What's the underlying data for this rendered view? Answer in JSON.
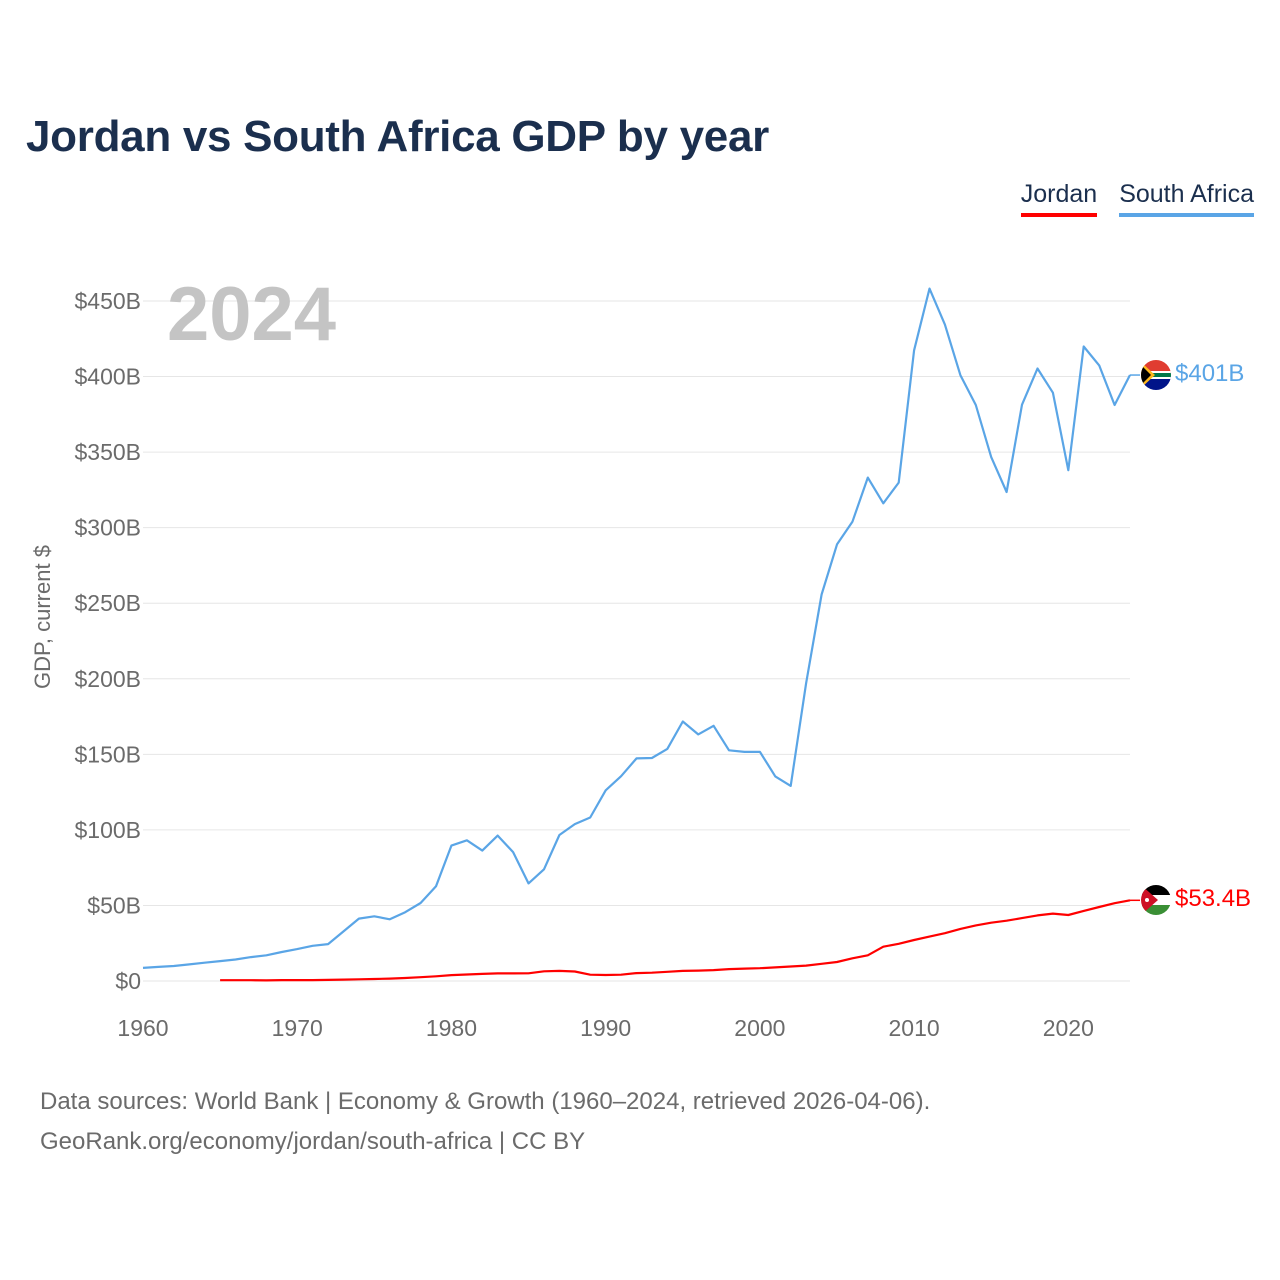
{
  "title": "Jordan vs South Africa GDP by year",
  "year_label": "2024",
  "legend": [
    {
      "label": "Jordan",
      "color": "#ff0000"
    },
    {
      "label": "South Africa",
      "color": "#5aa5e6"
    }
  ],
  "footer": {
    "line1": "Data sources: World Bank | Economy & Growth (1960–2024, retrieved 2026-04-06).",
    "line2": "GeoRank.org/economy/jordan/south-africa | CC BY"
  },
  "chart_data": {
    "type": "line",
    "title": "Jordan vs South Africa GDP by year",
    "xlabel": "",
    "ylabel": "GDP, current $",
    "xlim": [
      1960,
      2024
    ],
    "ylim": [
      0,
      450
    ],
    "y_unit": "billion USD",
    "x_ticks": [
      "1960",
      "1970",
      "1980",
      "1990",
      "2000",
      "2010",
      "2020"
    ],
    "y_ticks": [
      "$0",
      "$50B",
      "$100B",
      "$150B",
      "$200B",
      "$250B",
      "$300B",
      "$350B",
      "$400B",
      "$450B"
    ],
    "grid": true,
    "series": [
      {
        "name": "South Africa",
        "color": "#5aa5e6",
        "end_label": "$401B",
        "x": [
          1960,
          1961,
          1962,
          1963,
          1964,
          1965,
          1966,
          1967,
          1968,
          1969,
          1970,
          1971,
          1972,
          1973,
          1974,
          1975,
          1976,
          1977,
          1978,
          1979,
          1980,
          1981,
          1982,
          1983,
          1984,
          1985,
          1986,
          1987,
          1988,
          1989,
          1990,
          1991,
          1992,
          1993,
          1994,
          1995,
          1996,
          1997,
          1998,
          1999,
          2000,
          2001,
          2002,
          2003,
          2004,
          2005,
          2006,
          2007,
          2008,
          2009,
          2010,
          2011,
          2012,
          2013,
          2014,
          2015,
          2016,
          2017,
          2018,
          2019,
          2020,
          2021,
          2022,
          2023,
          2024
        ],
        "values": [
          8.7,
          9.3,
          9.9,
          11,
          12.1,
          13.2,
          14.2,
          15.8,
          17,
          19.2,
          21.1,
          23.3,
          24.4,
          32.8,
          41.3,
          42.8,
          40.8,
          45.5,
          51.6,
          62.7,
          89.6,
          93.1,
          86.3,
          96.2,
          85.3,
          64.6,
          73.9,
          96.6,
          103.8,
          108.2,
          126.2,
          135.5,
          147.3,
          147.6,
          153.6,
          171.7,
          163.2,
          168.9,
          152.7,
          151.6,
          151.7,
          135.4,
          129.1,
          197,
          255.8,
          288.9,
          303.9,
          333.1,
          316.1,
          329.8,
          417.4,
          458.2,
          434.4,
          400.9,
          381.2,
          346.7,
          323.6,
          381.4,
          405.3,
          389.3,
          338,
          419.9,
          407.4,
          381.2,
          401
        ]
      },
      {
        "name": "Jordan",
        "color": "#ff0000",
        "end_label": "$53.4B",
        "x": [
          1965,
          1966,
          1967,
          1968,
          1969,
          1970,
          1971,
          1972,
          1973,
          1974,
          1975,
          1976,
          1977,
          1978,
          1979,
          1980,
          1981,
          1982,
          1983,
          1984,
          1985,
          1986,
          1987,
          1988,
          1989,
          1990,
          1991,
          1992,
          1993,
          1994,
          1995,
          1996,
          1997,
          1998,
          1999,
          2000,
          2001,
          2002,
          2003,
          2004,
          2005,
          2006,
          2007,
          2008,
          2009,
          2010,
          2011,
          2012,
          2013,
          2014,
          2015,
          2016,
          2017,
          2018,
          2019,
          2020,
          2021,
          2022,
          2023,
          2024
        ],
        "values": [
          0.5,
          0.5,
          0.5,
          0.4,
          0.6,
          0.6,
          0.6,
          0.7,
          0.9,
          1.1,
          1.3,
          1.6,
          2,
          2.5,
          3.1,
          3.9,
          4.3,
          4.7,
          5,
          5,
          5.1,
          6.4,
          6.7,
          6.3,
          4.2,
          4,
          4.2,
          5.2,
          5.5,
          6.1,
          6.7,
          6.9,
          7.2,
          7.9,
          8.2,
          8.5,
          9,
          9.6,
          10.2,
          11.4,
          12.6,
          15,
          17,
          22.7,
          24.6,
          27.1,
          29.4,
          31.6,
          34.5,
          36.8,
          38.6,
          39.9,
          41.6,
          43.4,
          44.6,
          43.7,
          46.4,
          49,
          51.5,
          53.4
        ]
      }
    ]
  }
}
